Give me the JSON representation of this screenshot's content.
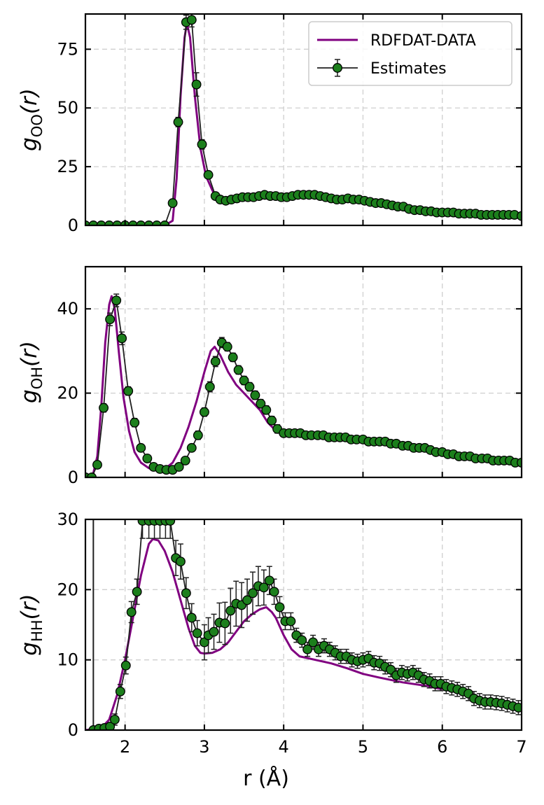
{
  "colors": {
    "reference_line": "#800080",
    "marker_face": "#1c7f1c",
    "marker_edge": "#000000",
    "estimate_line": "#202020"
  },
  "legend": {
    "reference": "RDFDAT-DATA",
    "estimates": "Estimates",
    "placement": "upper-right of top panel"
  },
  "xlabel": "r (Å)",
  "chart_data": [
    {
      "type": "line",
      "panel": "g_OO",
      "ylabel": {
        "base": "g",
        "sub": "OO",
        "arg": "(r)"
      },
      "xlim": [
        1.5,
        7
      ],
      "ylim": [
        0,
        90
      ],
      "xticks": [
        2,
        3,
        4,
        5,
        6,
        7
      ],
      "yticks": [
        0,
        25,
        50,
        75
      ],
      "grid": true,
      "series": [
        {
          "name": "RDFDAT-DATA",
          "kind": "line",
          "x": [
            1.5,
            2.5,
            2.6,
            2.65,
            2.7,
            2.75,
            2.78,
            2.82,
            2.88,
            2.95,
            3.02,
            3.1,
            3.15,
            3.2,
            3.3,
            3.5,
            3.8,
            4.0,
            4.3,
            4.6,
            5.0,
            5.5,
            6.0,
            6.5,
            7.0
          ],
          "y": [
            0,
            0,
            2,
            20,
            55,
            80,
            86,
            80,
            55,
            33,
            21,
            15,
            12,
            11,
            10,
            11.5,
            12,
            12,
            12.5,
            11,
            10,
            7.5,
            5.5,
            4.5,
            4
          ]
        },
        {
          "name": "Estimates",
          "kind": "errorbar",
          "x": [
            1.5,
            1.6,
            1.7,
            1.8,
            1.9,
            2.0,
            2.1,
            2.2,
            2.3,
            2.4,
            2.5,
            2.6,
            2.67,
            2.77,
            2.84,
            2.9,
            2.97,
            3.05,
            3.14,
            3.2,
            3.27,
            3.34,
            3.41,
            3.48,
            3.55,
            3.62,
            3.69,
            3.76,
            3.83,
            3.9,
            3.97,
            4.04,
            4.11,
            4.18,
            4.25,
            4.32,
            4.39,
            4.46,
            4.53,
            4.6,
            4.67,
            4.74,
            4.81,
            4.88,
            4.95,
            5.02,
            5.09,
            5.16,
            5.23,
            5.3,
            5.37,
            5.44,
            5.51,
            5.58,
            5.65,
            5.72,
            5.79,
            5.86,
            5.93,
            6.0,
            6.07,
            6.14,
            6.21,
            6.28,
            6.35,
            6.42,
            6.49,
            6.56,
            6.63,
            6.7,
            6.77,
            6.84,
            6.91,
            7.0
          ],
          "y": [
            0,
            0,
            0,
            0,
            0,
            0,
            0,
            0,
            0,
            0,
            0,
            9.5,
            44,
            86.5,
            87.5,
            60,
            34.5,
            21.5,
            12.5,
            11,
            10.5,
            11,
            11.5,
            12,
            12,
            12,
            12.5,
            13,
            12.5,
            12.5,
            12,
            12,
            12.5,
            13,
            13,
            13,
            13,
            12.5,
            12,
            11.5,
            11,
            11,
            11.5,
            11,
            11,
            10.5,
            10,
            9.5,
            9.5,
            9,
            8.5,
            8,
            8,
            7,
            6.5,
            6.5,
            6,
            6,
            5.5,
            5.5,
            5.5,
            5.5,
            5,
            5,
            5,
            5,
            4.5,
            4.5,
            4.5,
            4.5,
            4.5,
            4.5,
            4.5,
            4
          ],
          "err": [
            0,
            0,
            0,
            0,
            0,
            0,
            0,
            0,
            0,
            0,
            0,
            1,
            2,
            3,
            3,
            5,
            2,
            1.5,
            1,
            1,
            1,
            1,
            1,
            1,
            1,
            1,
            1,
            1,
            1,
            1,
            1,
            1,
            1,
            1,
            1,
            1,
            1,
            1,
            1,
            1,
            1,
            1,
            1,
            1,
            1,
            1,
            1,
            1,
            1,
            1,
            1,
            1,
            1,
            1,
            1,
            1,
            1,
            1,
            1,
            1,
            1,
            1,
            1,
            1,
            1,
            1,
            1,
            1,
            1,
            1,
            1,
            1,
            1,
            1
          ]
        }
      ]
    },
    {
      "type": "line",
      "panel": "g_OH",
      "ylabel": {
        "base": "g",
        "sub": "OH",
        "arg": "(r)"
      },
      "xlim": [
        1.5,
        7
      ],
      "ylim": [
        0,
        50
      ],
      "xticks": [
        2,
        3,
        4,
        5,
        6,
        7
      ],
      "yticks": [
        0,
        20,
        40
      ],
      "grid": true,
      "series": [
        {
          "name": "RDFDAT-DATA",
          "kind": "line",
          "x": [
            1.5,
            1.6,
            1.65,
            1.7,
            1.75,
            1.8,
            1.83,
            1.87,
            1.92,
            1.98,
            2.05,
            2.12,
            2.2,
            2.3,
            2.4,
            2.5,
            2.6,
            2.7,
            2.8,
            2.9,
            3.0,
            3.08,
            3.13,
            3.2,
            3.3,
            3.4,
            3.55,
            3.7,
            3.8,
            3.88,
            3.95,
            4.2,
            4.5,
            5.0,
            5.5,
            6.0,
            6.5,
            7.0
          ],
          "y": [
            0,
            1,
            5,
            17,
            32,
            41,
            43,
            40,
            30,
            19,
            11,
            6,
            3.5,
            2.2,
            1.8,
            2,
            3.5,
            7,
            12,
            18,
            25,
            30,
            31,
            29,
            25,
            22,
            19,
            16,
            13,
            11.5,
            10.5,
            10,
            9.5,
            8.5,
            7.5,
            6,
            4.5,
            3.5
          ]
        },
        {
          "name": "Estimates",
          "kind": "errorbar",
          "x": [
            1.5,
            1.58,
            1.65,
            1.73,
            1.81,
            1.89,
            1.96,
            2.04,
            2.12,
            2.2,
            2.28,
            2.36,
            2.44,
            2.52,
            2.6,
            2.68,
            2.76,
            2.84,
            2.92,
            3.0,
            3.07,
            3.14,
            3.22,
            3.29,
            3.36,
            3.43,
            3.5,
            3.57,
            3.64,
            3.71,
            3.78,
            3.85,
            3.92,
            4.0,
            4.07,
            4.14,
            4.21,
            4.28,
            4.35,
            4.43,
            4.5,
            4.57,
            4.64,
            4.71,
            4.78,
            4.85,
            4.92,
            5.0,
            5.07,
            5.14,
            5.21,
            5.28,
            5.35,
            5.42,
            5.5,
            5.57,
            5.64,
            5.71,
            5.78,
            5.85,
            5.92,
            6.0,
            6.07,
            6.14,
            6.21,
            6.28,
            6.35,
            6.42,
            6.5,
            6.57,
            6.64,
            6.71,
            6.78,
            6.85,
            6.92,
            7.0
          ],
          "y": [
            0,
            0,
            3,
            16.5,
            37.5,
            42,
            33,
            20.5,
            13,
            7,
            4.5,
            2.5,
            2,
            1.8,
            1.8,
            2.5,
            4,
            7,
            10,
            15.5,
            21.5,
            27.5,
            32,
            31,
            28.5,
            25.5,
            23,
            21.5,
            19.5,
            17.5,
            16,
            13.5,
            11.5,
            10.5,
            10.5,
            10.5,
            10.5,
            10,
            10,
            10,
            10,
            9.5,
            9.5,
            9.5,
            9.5,
            9,
            9,
            9,
            8.5,
            8.5,
            8.5,
            8.5,
            8,
            8,
            7.5,
            7.5,
            7,
            7,
            7,
            6.5,
            6,
            6,
            5.5,
            5.5,
            5,
            5,
            5,
            4.5,
            4.5,
            4.5,
            4,
            4,
            4,
            4,
            3.5,
            3.5
          ],
          "err": [
            0,
            0,
            0.5,
            1,
            1.5,
            1.5,
            1.5,
            1,
            1,
            0.8,
            0.6,
            0.5,
            0.5,
            0.5,
            0.5,
            0.5,
            0.5,
            0.8,
            1,
            1,
            1.2,
            1.2,
            1.2,
            1,
            1,
            1,
            1,
            1,
            1,
            1,
            1,
            1,
            1,
            0.8,
            0.8,
            0.8,
            0.8,
            0.8,
            0.8,
            0.8,
            0.8,
            0.8,
            0.8,
            0.8,
            0.8,
            0.8,
            0.8,
            0.8,
            0.8,
            0.8,
            0.8,
            0.8,
            0.8,
            0.8,
            0.8,
            0.8,
            0.8,
            0.8,
            0.8,
            0.8,
            0.8,
            0.8,
            0.8,
            0.8,
            0.8,
            0.8,
            0.8,
            0.8,
            0.8,
            0.8,
            0.8,
            0.8,
            0.8,
            0.8,
            0.8,
            0.8
          ]
        }
      ]
    },
    {
      "type": "line",
      "panel": "g_HH",
      "ylabel": {
        "base": "g",
        "sub": "HH",
        "arg": "(r)"
      },
      "xlabel": "r (Å)",
      "xlim": [
        1.5,
        7
      ],
      "ylim": [
        0,
        30
      ],
      "xticks": [
        2,
        3,
        4,
        5,
        6,
        7
      ],
      "yticks": [
        0,
        10,
        20,
        30
      ],
      "grid": true,
      "series": [
        {
          "name": "RDFDAT-DATA",
          "kind": "line",
          "x": [
            1.5,
            1.7,
            1.8,
            1.9,
            2.0,
            2.1,
            2.2,
            2.3,
            2.35,
            2.42,
            2.5,
            2.6,
            2.7,
            2.8,
            2.88,
            2.95,
            3.0,
            3.1,
            3.2,
            3.3,
            3.4,
            3.5,
            3.6,
            3.7,
            3.78,
            3.85,
            3.9,
            4.0,
            4.1,
            4.2,
            4.4,
            4.6,
            4.8,
            5.0,
            5.2,
            5.5,
            5.8,
            6.0
          ],
          "y": [
            0,
            0.3,
            1.5,
            5,
            10,
            16,
            22,
            26.5,
            27.2,
            27,
            25.5,
            22.5,
            18.5,
            14.5,
            12,
            11,
            10.9,
            11,
            11.5,
            12.5,
            14,
            15.5,
            16.5,
            17.2,
            17.5,
            16.8,
            16,
            13.5,
            11.5,
            10.5,
            10,
            9.5,
            8.8,
            8,
            7.5,
            6.8,
            6.3,
            5.8
          ]
        },
        {
          "name": "Estimates",
          "kind": "errorbar",
          "x": [
            1.6,
            1.67,
            1.74,
            1.81,
            1.87,
            1.94,
            2.01,
            2.08,
            2.15,
            2.22,
            2.3,
            2.37,
            2.44,
            2.51,
            2.57,
            2.64,
            2.7,
            2.77,
            2.84,
            2.91,
            3.0,
            3.05,
            3.12,
            3.19,
            3.26,
            3.33,
            3.4,
            3.47,
            3.54,
            3.61,
            3.68,
            3.75,
            3.82,
            3.88,
            3.95,
            4.02,
            4.09,
            4.16,
            4.23,
            4.3,
            4.37,
            4.44,
            4.51,
            4.58,
            4.65,
            4.72,
            4.79,
            4.86,
            4.93,
            5.0,
            5.07,
            5.14,
            5.21,
            5.28,
            5.35,
            5.42,
            5.49,
            5.56,
            5.63,
            5.7,
            5.77,
            5.84,
            5.91,
            5.98,
            6.05,
            6.12,
            6.19,
            6.26,
            6.33,
            6.4,
            6.47,
            6.54,
            6.61,
            6.68,
            6.75,
            6.82,
            6.89,
            6.96
          ],
          "y": [
            0,
            0.2,
            0.3,
            0.5,
            1.5,
            5.5,
            9.2,
            16.8,
            19.7,
            29.8,
            29.8,
            29.8,
            29.8,
            29.8,
            29.8,
            24.5,
            24,
            19.5,
            16,
            13.8,
            12.5,
            13.5,
            14,
            15.3,
            15.2,
            17,
            18,
            17.8,
            18.5,
            19.5,
            20.5,
            20.3,
            21.3,
            19.7,
            17.5,
            15.5,
            15.5,
            13.5,
            12.8,
            11.5,
            12.5,
            11.5,
            12,
            11.5,
            11,
            10.5,
            10.5,
            10,
            9.8,
            10,
            10.2,
            9.6,
            9.5,
            9,
            8.6,
            7.8,
            8.2,
            8,
            8.2,
            7.8,
            7.2,
            7,
            6.6,
            6.6,
            6.2,
            6,
            5.8,
            5.5,
            5.2,
            4.5,
            4.2,
            4,
            4,
            3.9,
            3.8,
            3.6,
            3.4,
            3.2
          ],
          "err": [
            0,
            0.2,
            0.3,
            0.5,
            0.8,
            1,
            1.2,
            1.5,
            1.8,
            2.5,
            2.5,
            2.5,
            2.5,
            2.5,
            2.5,
            2.5,
            2.5,
            2.2,
            2,
            1.8,
            2.5,
            2.5,
            2.5,
            2.8,
            3,
            3.2,
            3.2,
            3.2,
            3,
            3,
            2.8,
            2.5,
            2,
            1.8,
            1.5,
            1.2,
            1.2,
            1,
            1,
            1,
            1,
            1,
            1,
            1,
            1,
            1,
            1,
            1,
            1,
            1,
            1,
            1,
            1,
            1,
            1,
            1,
            1,
            1,
            1,
            1,
            1,
            1,
            1,
            1,
            1,
            1,
            1,
            1,
            1,
            1,
            1,
            1,
            1,
            1,
            1,
            1,
            1,
            1
          ]
        },
        {
          "name": "",
          "kind": "segment",
          "x": [
            1.6,
            1.6
          ],
          "y": [
            0,
            30
          ]
        }
      ]
    }
  ]
}
